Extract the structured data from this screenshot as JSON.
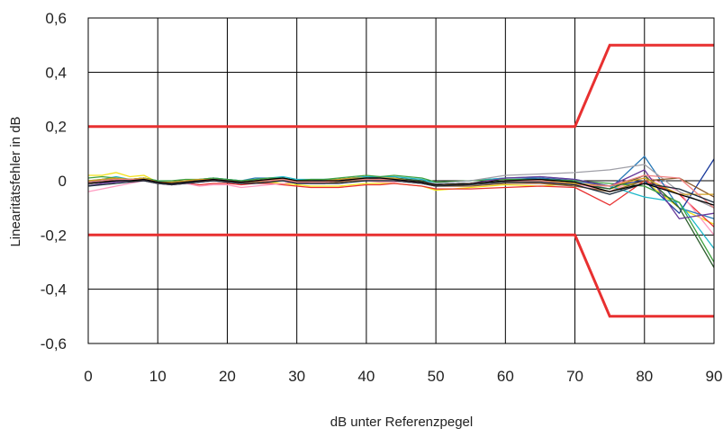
{
  "chart_data": {
    "type": "line",
    "title": "",
    "xlabel": "dB unter Referenzpegel",
    "ylabel": "Linearitätsfehler  in dB",
    "xlim": [
      0,
      90
    ],
    "ylim": [
      -0.6,
      0.6
    ],
    "x_ticks": [
      "0",
      "10",
      "20",
      "30",
      "40",
      "50",
      "60",
      "70",
      "80",
      "90"
    ],
    "y_ticks": [
      "0,6",
      "0,4",
      "0,2",
      "0",
      "-0,2",
      "-0,4",
      "-0,6"
    ],
    "grid": true,
    "legend": "none",
    "limits": [
      {
        "color": "#e83030",
        "x": [
          0,
          70,
          75,
          90
        ],
        "values": [
          0.2,
          0.2,
          0.5,
          0.5
        ]
      },
      {
        "color": "#e83030",
        "x": [
          0,
          70,
          75,
          90
        ],
        "values": [
          -0.2,
          -0.2,
          -0.5,
          -0.5
        ]
      }
    ],
    "x": [
      0,
      2,
      4,
      6,
      8,
      10,
      12,
      14,
      16,
      18,
      20,
      22,
      24,
      26,
      28,
      30,
      32,
      34,
      36,
      38,
      40,
      42,
      44,
      46,
      48,
      50,
      55,
      60,
      65,
      70,
      75,
      80,
      85,
      90
    ],
    "series": [
      {
        "color": "#f4e21a",
        "values": [
          0.02,
          0.02,
          0.03,
          0.015,
          0.02,
          -0.005,
          -0.01,
          -0.005,
          -0.005,
          0.0,
          0.0,
          -0.01,
          -0.005,
          -0.005,
          -0.01,
          -0.015,
          -0.02,
          -0.02,
          -0.02,
          -0.015,
          -0.01,
          -0.01,
          -0.01,
          -0.015,
          -0.02,
          -0.035,
          -0.025,
          -0.015,
          -0.02,
          -0.01,
          -0.03,
          0.0,
          -0.1,
          -0.16
        ]
      },
      {
        "color": "#e83030",
        "values": [
          -0.01,
          -0.005,
          0.0,
          0.0,
          0.005,
          -0.01,
          -0.015,
          -0.01,
          -0.015,
          -0.01,
          -0.01,
          -0.015,
          -0.01,
          -0.01,
          -0.015,
          -0.02,
          -0.025,
          -0.025,
          -0.025,
          -0.02,
          -0.015,
          -0.015,
          -0.01,
          -0.015,
          -0.02,
          -0.03,
          -0.03,
          -0.025,
          -0.02,
          -0.025,
          -0.09,
          0.0,
          -0.05,
          -0.17
        ]
      },
      {
        "color": "#ff9bc0",
        "values": [
          -0.04,
          -0.03,
          -0.02,
          -0.01,
          0.0,
          -0.005,
          -0.01,
          -0.01,
          -0.02,
          -0.015,
          -0.015,
          -0.025,
          -0.02,
          -0.015,
          -0.01,
          -0.005,
          -0.01,
          -0.01,
          -0.005,
          0.0,
          0.0,
          -0.005,
          -0.005,
          0.0,
          -0.01,
          -0.02,
          -0.01,
          0.0,
          -0.01,
          -0.01,
          -0.04,
          0.02,
          -0.04,
          -0.2
        ]
      },
      {
        "color": "#1a3a9c",
        "values": [
          -0.02,
          -0.01,
          0.0,
          0.0,
          0.005,
          -0.005,
          -0.01,
          -0.005,
          0.0,
          0.005,
          0.0,
          -0.005,
          0.0,
          0.005,
          0.005,
          0.0,
          0.0,
          0.0,
          0.0,
          0.005,
          0.005,
          0.01,
          0.005,
          0.0,
          -0.005,
          -0.02,
          -0.01,
          0.0,
          0.01,
          0.0,
          -0.02,
          0.0,
          -0.12,
          0.08
        ]
      },
      {
        "color": "#2a7ab8",
        "values": [
          -0.01,
          0.0,
          0.01,
          0.0,
          0.01,
          0.0,
          -0.005,
          0.0,
          0.005,
          0.01,
          0.005,
          0.0,
          0.01,
          0.01,
          0.01,
          0.0,
          0.0,
          0.005,
          0.005,
          0.01,
          0.015,
          0.01,
          0.01,
          0.005,
          0.0,
          -0.01,
          0.0,
          0.01,
          0.01,
          -0.005,
          -0.03,
          0.09,
          -0.1,
          -0.14
        ]
      },
      {
        "color": "#1fb8c9",
        "values": [
          0.0,
          0.005,
          0.015,
          0.005,
          0.01,
          0.0,
          -0.005,
          0.0,
          0.005,
          0.01,
          0.005,
          0.0,
          0.005,
          0.01,
          0.015,
          0.005,
          0.005,
          0.005,
          0.005,
          0.01,
          0.015,
          0.015,
          0.015,
          0.01,
          0.005,
          -0.01,
          0.0,
          0.01,
          0.015,
          0.005,
          -0.02,
          -0.06,
          -0.08,
          -0.25
        ]
      },
      {
        "color": "#3fa040",
        "values": [
          0.01,
          0.015,
          0.01,
          0.005,
          0.01,
          0.0,
          0.0,
          0.005,
          0.005,
          0.01,
          0.005,
          0.0,
          0.005,
          0.01,
          0.01,
          0.0,
          0.005,
          0.005,
          0.01,
          0.015,
          0.02,
          0.015,
          0.02,
          0.015,
          0.01,
          -0.005,
          0.0,
          0.005,
          0.005,
          0.0,
          -0.01,
          -0.02,
          -0.08,
          -0.3
        ]
      },
      {
        "color": "#2e5e2e",
        "values": [
          -0.005,
          0.005,
          0.01,
          0.005,
          0.01,
          -0.005,
          -0.01,
          -0.005,
          0.0,
          0.005,
          0.0,
          -0.005,
          0.0,
          0.005,
          0.01,
          0.0,
          0.0,
          0.0,
          0.005,
          0.01,
          0.01,
          0.01,
          0.01,
          0.005,
          0.0,
          -0.015,
          -0.01,
          0.0,
          0.0,
          -0.01,
          -0.03,
          0.02,
          -0.1,
          -0.32
        ]
      },
      {
        "color": "#a0a0a8",
        "values": [
          -0.015,
          -0.01,
          0.0,
          0.0,
          0.005,
          -0.01,
          -0.01,
          -0.01,
          -0.005,
          0.0,
          -0.005,
          -0.01,
          -0.005,
          0.0,
          0.0,
          -0.005,
          -0.005,
          -0.005,
          0.0,
          0.005,
          0.005,
          0.005,
          0.005,
          0.0,
          -0.005,
          -0.01,
          0.0,
          0.02,
          0.025,
          0.03,
          0.04,
          0.06,
          -0.04,
          -0.1
        ]
      },
      {
        "color": "#6a3a9a",
        "values": [
          -0.02,
          -0.01,
          -0.005,
          0.0,
          0.0,
          -0.01,
          -0.015,
          -0.01,
          -0.005,
          0.0,
          -0.005,
          -0.01,
          -0.005,
          0.0,
          0.0,
          -0.005,
          -0.01,
          -0.01,
          -0.005,
          0.0,
          0.0,
          0.0,
          0.0,
          -0.005,
          -0.01,
          -0.02,
          -0.01,
          0.01,
          0.015,
          0.005,
          -0.02,
          0.04,
          -0.14,
          -0.12
        ]
      },
      {
        "color": "#8a5a2a",
        "values": [
          -0.01,
          -0.005,
          0.0,
          0.0,
          0.0,
          -0.01,
          -0.01,
          -0.005,
          0.0,
          0.0,
          0.0,
          -0.01,
          -0.005,
          0.0,
          0.0,
          -0.01,
          -0.01,
          -0.01,
          -0.005,
          0.0,
          0.0,
          0.0,
          0.0,
          -0.005,
          -0.01,
          -0.02,
          -0.02,
          -0.01,
          -0.01,
          -0.02,
          -0.04,
          0.0,
          0.01,
          -0.06
        ]
      },
      {
        "color": "#d4a020",
        "values": [
          0.0,
          0.005,
          0.01,
          0.005,
          0.01,
          -0.005,
          -0.005,
          0.0,
          0.005,
          0.005,
          0.0,
          -0.005,
          0.0,
          0.005,
          0.005,
          0.0,
          0.0,
          0.0,
          0.005,
          0.01,
          0.01,
          0.01,
          0.01,
          0.0,
          -0.005,
          -0.02,
          -0.01,
          0.0,
          0.0,
          -0.01,
          -0.02,
          0.01,
          -0.05,
          -0.05
        ]
      },
      {
        "color": "#f08080",
        "values": [
          -0.005,
          0.0,
          0.005,
          0.005,
          0.005,
          -0.005,
          -0.01,
          -0.005,
          0.0,
          0.005,
          0.0,
          -0.005,
          0.0,
          0.0,
          0.005,
          -0.005,
          -0.005,
          -0.005,
          0.0,
          0.005,
          0.005,
          0.005,
          0.005,
          0.0,
          -0.005,
          -0.015,
          -0.01,
          0.0,
          0.0,
          -0.015,
          -0.02,
          0.02,
          0.01,
          -0.1
        ]
      },
      {
        "color": "#1a2a3a",
        "values": [
          -0.02,
          -0.015,
          -0.01,
          -0.005,
          0.0,
          -0.01,
          -0.015,
          -0.01,
          -0.005,
          0.0,
          -0.005,
          -0.01,
          -0.01,
          -0.005,
          0.0,
          -0.01,
          -0.01,
          -0.01,
          -0.01,
          -0.005,
          0.0,
          0.0,
          0.0,
          -0.005,
          -0.01,
          -0.02,
          -0.015,
          -0.005,
          -0.005,
          -0.015,
          -0.05,
          -0.01,
          -0.03,
          -0.08
        ]
      },
      {
        "color": "#000000",
        "values": [
          -0.01,
          -0.005,
          0.0,
          0.0,
          0.005,
          -0.005,
          -0.01,
          -0.005,
          0.0,
          0.005,
          0.0,
          -0.005,
          0.0,
          0.005,
          0.01,
          0.0,
          0.0,
          0.0,
          0.0,
          0.005,
          0.01,
          0.01,
          0.005,
          0.0,
          -0.005,
          -0.015,
          -0.01,
          0.0,
          0.005,
          -0.005,
          -0.04,
          -0.01,
          -0.05,
          -0.09
        ]
      }
    ]
  }
}
